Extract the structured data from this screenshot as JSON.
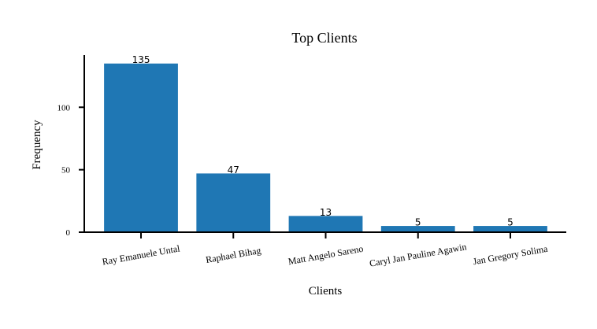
{
  "chart_data": {
    "type": "bar",
    "title": "Top Clients",
    "xlabel": "Clients",
    "ylabel": "Frequency",
    "categories": [
      "Ray Emanuele Untal",
      "Raphael Bihag",
      "Matt Angelo Sareno",
      "Caryl Jan Pauline Agawin",
      "Jan Gregory Solima"
    ],
    "values": [
      135,
      47,
      13,
      5,
      5
    ],
    "data_labels": [
      "135",
      "47",
      "13",
      "5",
      "5"
    ],
    "yticks": [
      0,
      50,
      100
    ],
    "ytick_labels": [
      "0",
      "50",
      "100"
    ],
    "ylim": [
      0,
      141.75
    ],
    "grid": false,
    "legend": "none",
    "bar_color": "#1f77b4",
    "xtick_rotation_deg": -10
  }
}
